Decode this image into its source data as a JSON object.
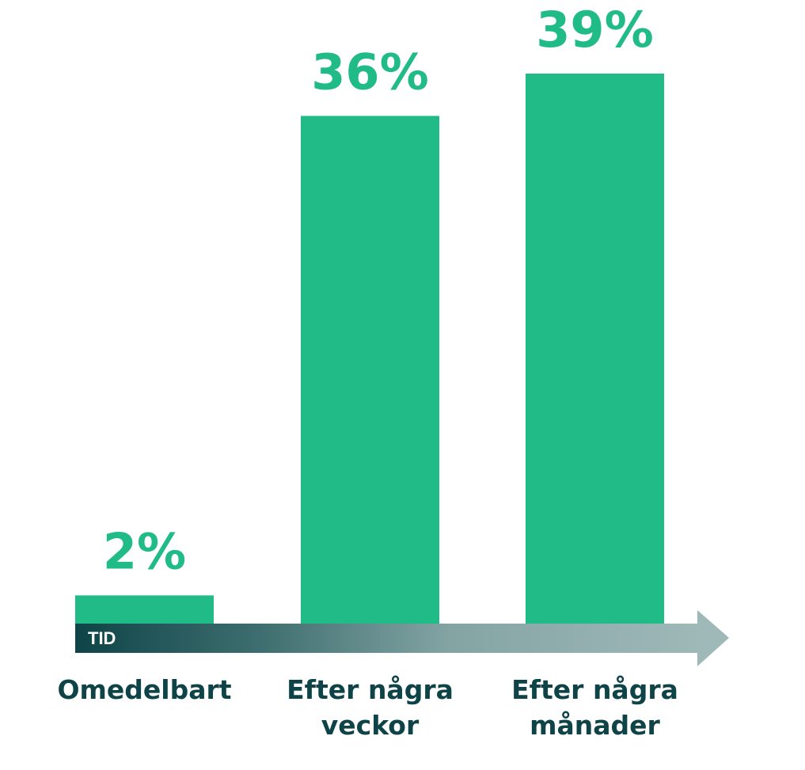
{
  "chart_data": {
    "type": "bar",
    "categories": [
      "Omedelbart",
      "Efter några veckor",
      "Efter några månader"
    ],
    "category_lines": [
      [
        "Omedelbart"
      ],
      [
        "Efter några",
        "veckor"
      ],
      [
        "Efter några",
        "månader"
      ]
    ],
    "values": [
      2,
      36,
      39
    ],
    "value_labels": [
      "2%",
      "36%",
      "39%"
    ],
    "unit": "%",
    "axis_label": "TID",
    "ylim": [
      0,
      39
    ],
    "grid": false,
    "legend": "none",
    "colors": {
      "bar": "#21bb88",
      "value_text": "#21bb88",
      "category_text": "#0e4447",
      "arrow_start": "#0e4447",
      "arrow_end": "#9fb8b8"
    }
  }
}
